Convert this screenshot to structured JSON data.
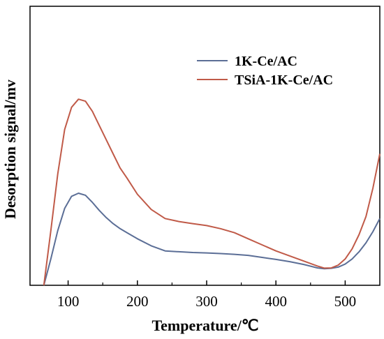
{
  "chart_data": {
    "type": "line",
    "title": "",
    "xlabel": "Temperature/℃",
    "ylabel": "Desorption signal/mv",
    "xlim": [
      45,
      550
    ],
    "ylim": [
      0,
      100
    ],
    "x_ticks": [
      100,
      200,
      300,
      400,
      500
    ],
    "x_tick_labels": [
      "100",
      "200",
      "300",
      "400",
      "500"
    ],
    "y_ticks_labeled": false,
    "grid": false,
    "legend_position": "top-right",
    "series": [
      {
        "name": "1K-Ce/AC",
        "color": "#5b6e96",
        "x": [
          65,
          75,
          85,
          95,
          105,
          115,
          125,
          135,
          145,
          155,
          165,
          175,
          185,
          200,
          220,
          240,
          260,
          280,
          300,
          320,
          340,
          360,
          380,
          400,
          420,
          440,
          460,
          470,
          480,
          490,
          500,
          510,
          520,
          530,
          540,
          550
        ],
        "y": [
          0,
          13,
          27,
          38,
          44,
          45.5,
          44.5,
          41,
          37,
          33.5,
          30.5,
          28,
          26,
          23,
          19.5,
          17,
          16.6,
          16.2,
          16,
          15.7,
          15.3,
          14.8,
          13.8,
          12.8,
          11.7,
          10.3,
          8.6,
          8.2,
          8.4,
          9,
          10.5,
          13,
          16.5,
          21,
          26.5,
          33
        ]
      },
      {
        "name": "TSiA-1K-Ce/AC",
        "color": "#c05a48",
        "x": [
          65,
          75,
          85,
          95,
          105,
          115,
          125,
          135,
          145,
          155,
          165,
          175,
          185,
          200,
          220,
          240,
          260,
          280,
          300,
          320,
          340,
          360,
          380,
          400,
          420,
          440,
          460,
          470,
          480,
          490,
          500,
          510,
          520,
          530,
          540,
          550
        ],
        "y": [
          0,
          27,
          55,
          77,
          88,
          92,
          91,
          86,
          79,
          72,
          65,
          58,
          53,
          45,
          37.5,
          33,
          31.5,
          30.5,
          29.5,
          28,
          26,
          23,
          20,
          17,
          14.5,
          12,
          9.5,
          8.5,
          8.6,
          10,
          13,
          18,
          25,
          34,
          48,
          65
        ]
      }
    ]
  }
}
